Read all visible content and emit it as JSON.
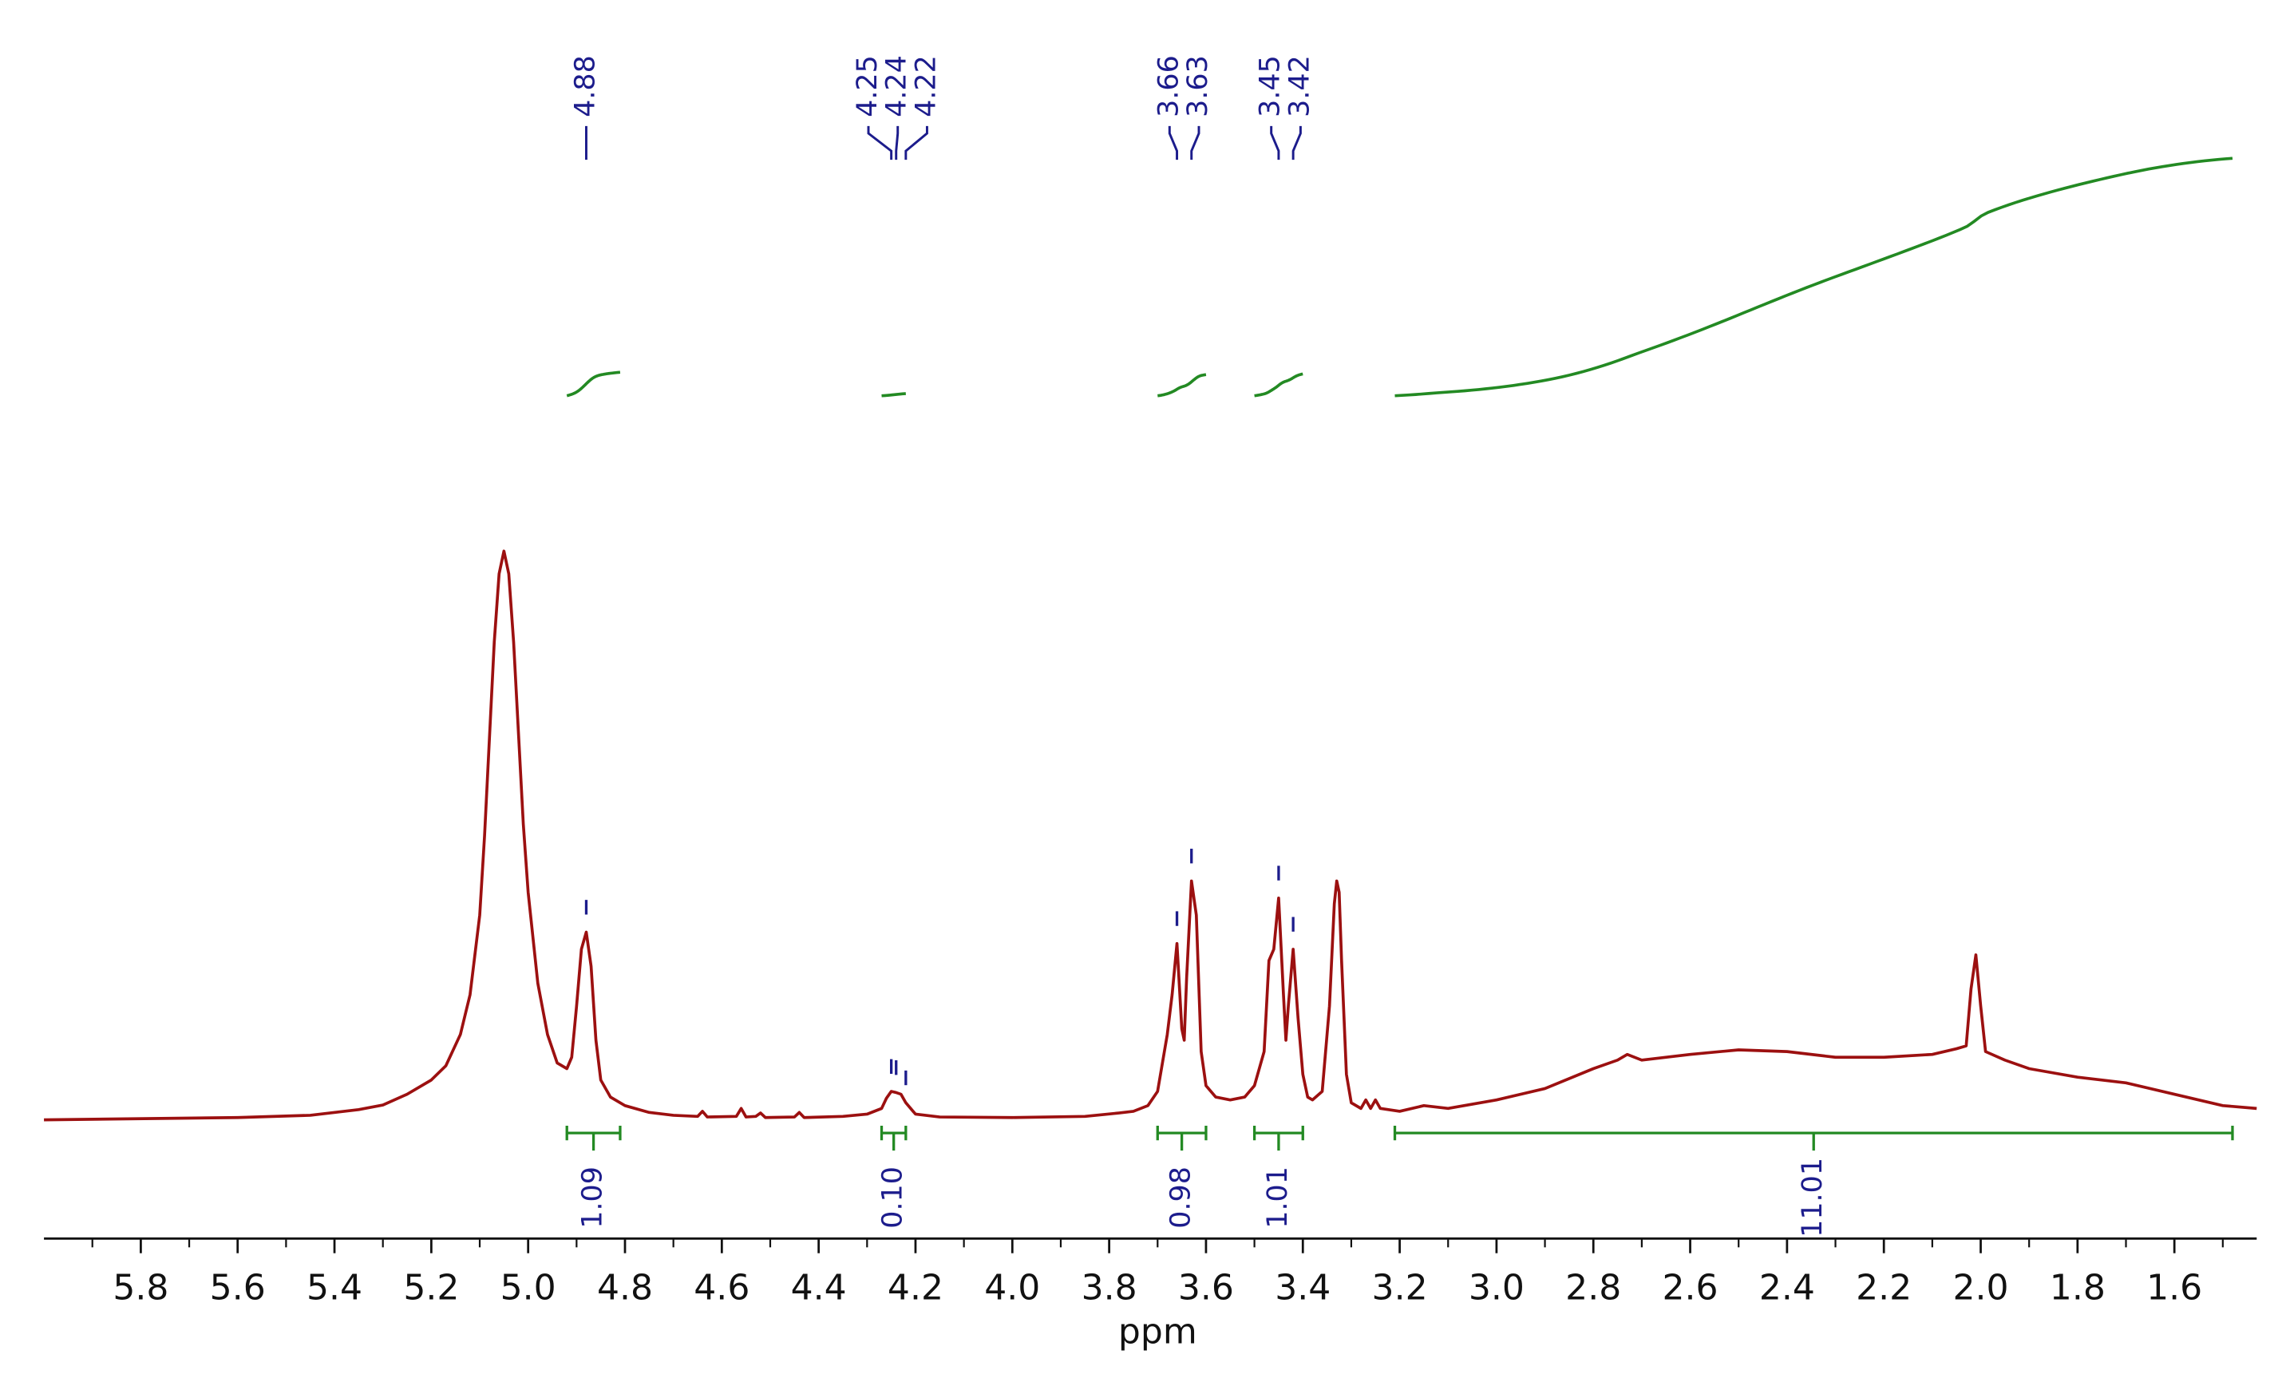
{
  "chart_data": {
    "type": "line",
    "xlabel": "ppm",
    "xlim": [
      6.0,
      1.43
    ],
    "xticks": [
      5.8,
      5.6,
      5.4,
      5.2,
      {
        "value": 5.0,
        "label": "5.0"
      },
      4.8,
      4.6,
      4.4,
      4.2,
      {
        "value": 4.0,
        "label": "4.0"
      },
      3.8,
      3.6,
      3.4,
      3.2,
      {
        "value": 3.0,
        "label": "3.0"
      },
      2.8,
      2.6,
      2.4,
      2.2,
      {
        "value": 2.0,
        "label": "2.0"
      },
      1.8,
      1.6
    ],
    "xminorticks": [
      5.9,
      5.7,
      5.5,
      5.3,
      5.1,
      4.9,
      4.7,
      4.5,
      4.3,
      4.1,
      3.9,
      3.7,
      3.5,
      3.3,
      3.1,
      2.9,
      2.7,
      2.5,
      2.3,
      2.1,
      1.9,
      1.7,
      1.5
    ],
    "color": "#9c1010",
    "x": [
      6.0,
      5.6,
      5.45,
      5.35,
      5.3,
      5.25,
      5.2,
      5.17,
      5.14,
      5.12,
      5.1,
      5.09,
      5.08,
      5.07,
      5.06,
      5.05,
      5.04,
      5.03,
      5.02,
      5.01,
      5.0,
      4.98,
      4.96,
      4.94,
      4.92,
      4.91,
      4.9,
      4.89,
      4.88,
      4.87,
      4.86,
      4.85,
      4.83,
      4.8,
      4.75,
      4.7,
      4.65,
      4.64,
      4.63,
      4.57,
      4.56,
      4.55,
      4.53,
      4.52,
      4.51,
      4.45,
      4.44,
      4.43,
      4.35,
      4.3,
      4.27,
      4.26,
      4.25,
      4.24,
      4.23,
      4.22,
      4.2,
      4.15,
      4.0,
      3.85,
      3.78,
      3.75,
      3.72,
      3.7,
      3.68,
      3.67,
      3.66,
      3.65,
      3.645,
      3.64,
      3.63,
      3.62,
      3.61,
      3.6,
      3.58,
      3.55,
      3.52,
      3.5,
      3.48,
      3.47,
      3.46,
      3.45,
      3.44,
      3.435,
      3.43,
      3.42,
      3.41,
      3.4,
      3.39,
      3.38,
      3.36,
      3.345,
      3.335,
      3.33,
      3.325,
      3.32,
      3.31,
      3.3,
      3.28,
      3.27,
      3.26,
      3.25,
      3.24,
      3.2,
      3.15,
      3.1,
      3.0,
      2.9,
      2.8,
      2.75,
      2.73,
      2.7,
      2.6,
      2.5,
      2.4,
      2.3,
      2.2,
      2.1,
      2.05,
      2.03,
      2.02,
      2.01,
      2.0,
      1.99,
      1.95,
      1.9,
      1.8,
      1.7,
      1.6,
      1.5,
      1.43
    ],
    "values": [
      0,
      0.4,
      0.8,
      1.8,
      2.6,
      4.5,
      7,
      9.5,
      15,
      22,
      36,
      50,
      67,
      84,
      96,
      100,
      96,
      84,
      68,
      52,
      40,
      24,
      15,
      10,
      9,
      11,
      20,
      30,
      33,
      27,
      14,
      7,
      4,
      2.5,
      1.3,
      0.8,
      0.6,
      1.5,
      0.5,
      0.6,
      2,
      0.5,
      0.6,
      1.2,
      0.4,
      0.5,
      1.3,
      0.4,
      0.6,
      1,
      2,
      3.8,
      5,
      4.8,
      4.5,
      3,
      1,
      0.5,
      0.4,
      0.6,
      1.2,
      1.5,
      2.5,
      5,
      15,
      22,
      31,
      16,
      14,
      25,
      42,
      36,
      12,
      6,
      4,
      3.5,
      4,
      6,
      12,
      28,
      30,
      39,
      22,
      14,
      20,
      30,
      18,
      8,
      4,
      3.5,
      5,
      20,
      38,
      42,
      40,
      28,
      8,
      3,
      2,
      3.5,
      2,
      3.5,
      2,
      1.5,
      2.5,
      2,
      3.5,
      5.5,
      9,
      10.5,
      11.5,
      10.5,
      11.5,
      12.3,
      12,
      11,
      11,
      11.5,
      12.5,
      13,
      23,
      29,
      20,
      12,
      10.5,
      9,
      7.5,
      6.5,
      4.5,
      2.5,
      2
    ],
    "peaks": {
      "color": "#1c1c8c",
      "values": [
        4.88,
        4.25,
        4.24,
        4.22,
        3.66,
        3.63,
        3.45,
        3.42
      ]
    },
    "integrals": {
      "color": "#238a23",
      "ranges": [
        [
          4.92,
          4.81
        ],
        [
          4.27,
          4.22
        ],
        [
          3.7,
          3.6
        ],
        [
          3.5,
          3.4
        ],
        [
          3.21,
          1.48
        ]
      ],
      "values": [
        1.09,
        0.1,
        0.98,
        1.01,
        11.01
      ],
      "value_labels": [
        "1.09",
        "0.10",
        "0.98",
        "1.01",
        "11.01"
      ]
    }
  }
}
